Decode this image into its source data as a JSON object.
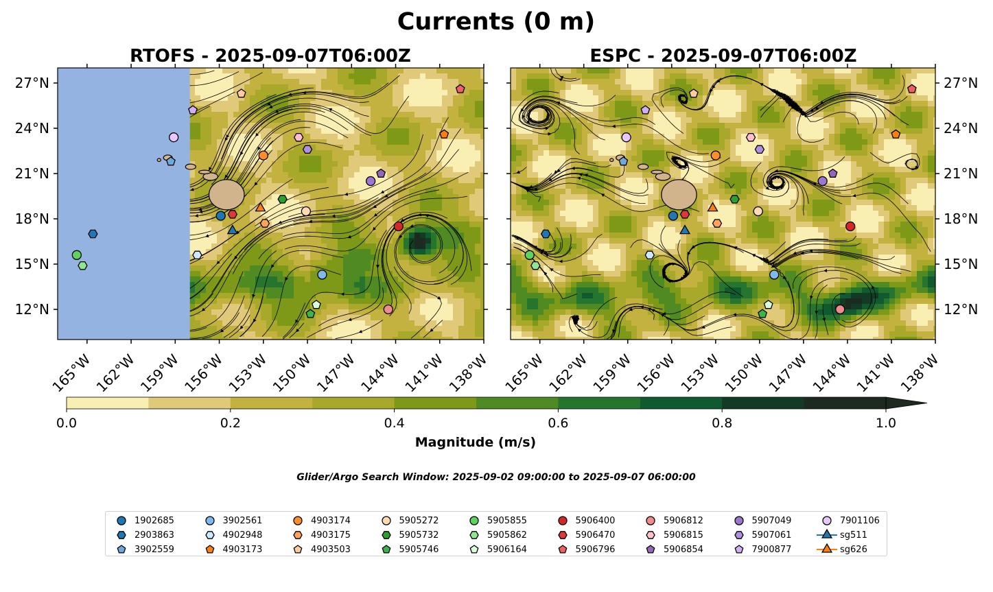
{
  "figure": {
    "title": "Currents (0 m)",
    "search_window": "Glider/Argo Search Window: 2025-09-02 09:00:00 to 2025-09-07 06:00:00"
  },
  "colors": {
    "land_mask": "#95b3e0",
    "land": "#d2b48c",
    "scale": [
      "#f9efb2",
      "#e0c979",
      "#c3b23f",
      "#a8a82a",
      "#7e9818",
      "#4f8a22",
      "#26752e",
      "#0f5a2e",
      "#133a24",
      "#1c2a1f"
    ]
  },
  "chart_data": [
    {
      "type": "map",
      "title": "RTOFS - 2025-09-07T06:00Z",
      "lon_range": [
        -167,
        -138
      ],
      "lat_range": [
        10,
        28
      ],
      "x_ticks": [
        "165°W",
        "162°W",
        "159°W",
        "156°W",
        "153°W",
        "150°W",
        "147°W",
        "144°W",
        "141°W",
        "138°W"
      ],
      "x_tick_values": [
        -165,
        -162,
        -159,
        -156,
        -153,
        -150,
        -147,
        -144,
        -141,
        -138
      ],
      "y_ticks": [
        "27°N",
        "24°N",
        "21°N",
        "18°N",
        "15°N",
        "12°N"
      ],
      "y_tick_values": [
        27,
        24,
        21,
        18,
        15,
        12
      ],
      "masked_west_of_lon": -158
    },
    {
      "type": "map",
      "title": "ESPC - 2025-09-07T06:00Z",
      "lon_range": [
        -167,
        -138
      ],
      "lat_range": [
        10,
        28
      ],
      "x_ticks": [
        "165°W",
        "162°W",
        "159°W",
        "156°W",
        "153°W",
        "150°W",
        "147°W",
        "144°W",
        "141°W",
        "138°W"
      ],
      "x_tick_values": [
        -165,
        -162,
        -159,
        -156,
        -153,
        -150,
        -147,
        -144,
        -141,
        -138
      ],
      "y_ticks": [
        "27°N",
        "24°N",
        "21°N",
        "18°N",
        "15°N",
        "12°N"
      ],
      "y_tick_values": [
        27,
        24,
        21,
        18,
        15,
        12
      ]
    },
    {
      "type": "colorbar",
      "label": "Magnitude (m/s)",
      "range": [
        0,
        1
      ],
      "levels": [
        0,
        0.1,
        0.2,
        0.3,
        0.4,
        0.5,
        0.6,
        0.7,
        0.8,
        0.9,
        1.0
      ],
      "tick_values": [
        0,
        0.2,
        0.4,
        0.6,
        0.8,
        1.0
      ],
      "ticks": [
        "0.0",
        "0.2",
        "0.4",
        "0.6",
        "0.8",
        "1.0"
      ],
      "extend": "max"
    }
  ],
  "floats": [
    {
      "id": "1902685",
      "marker": "circle",
      "color": "#1f77b4",
      "lon": -155.9,
      "lat": 18.2
    },
    {
      "id": "2903863",
      "marker": "hexagon",
      "color": "#1f77b4",
      "lon": -164.6,
      "lat": 17.0
    },
    {
      "id": "3902559",
      "marker": "pentagon",
      "color": "#6fa8dc",
      "lon": -159.3,
      "lat": 21.8
    },
    {
      "id": "3902561",
      "marker": "circle",
      "color": "#7fb9ee",
      "lon": -149.0,
      "lat": 14.3
    },
    {
      "id": "4902948",
      "marker": "hexagon",
      "color": "#cde8ff",
      "lon": -157.5,
      "lat": 15.6
    },
    {
      "id": "4903173",
      "marker": "pentagon",
      "color": "#ff7f0e",
      "lon": -140.7,
      "lat": 23.6
    },
    {
      "id": "4903174",
      "marker": "circle",
      "color": "#ff8c2a",
      "lon": -153.0,
      "lat": 22.2
    },
    {
      "id": "4903175",
      "marker": "hexagon",
      "color": "#ffa35a",
      "lon": -152.9,
      "lat": 17.7
    },
    {
      "id": "4903503",
      "marker": "pentagon",
      "color": "#ffcc99",
      "lon": -154.5,
      "lat": 26.3
    },
    {
      "id": "5905272",
      "marker": "circle",
      "color": "#ffdab3",
      "lon": -150.1,
      "lat": 18.5
    },
    {
      "id": "5905732",
      "marker": "hexagon",
      "color": "#2ca02c",
      "lon": -151.7,
      "lat": 19.3
    },
    {
      "id": "5905746",
      "marker": "pentagon",
      "color": "#3cb44b",
      "lon": -149.8,
      "lat": 11.7
    },
    {
      "id": "5905855",
      "marker": "circle",
      "color": "#5fd35f",
      "lon": -165.7,
      "lat": 15.6
    },
    {
      "id": "5905862",
      "marker": "hexagon",
      "color": "#8fe88f",
      "lon": -165.3,
      "lat": 14.9
    },
    {
      "id": "5906164",
      "marker": "pentagon",
      "color": "#d8ffd8",
      "lon": -149.4,
      "lat": 12.3
    },
    {
      "id": "5906400",
      "marker": "circle",
      "color": "#d62728",
      "lon": -143.8,
      "lat": 17.5
    },
    {
      "id": "5906470",
      "marker": "hexagon",
      "color": "#e0383a",
      "lon": -155.1,
      "lat": 18.3
    },
    {
      "id": "5906796",
      "marker": "pentagon",
      "color": "#f06060",
      "lon": -139.6,
      "lat": 26.6
    },
    {
      "id": "5906812",
      "marker": "circle",
      "color": "#f08c8c",
      "lon": -144.5,
      "lat": 12.0
    },
    {
      "id": "5906815",
      "marker": "hexagon",
      "color": "#ffc0cb",
      "lon": -150.6,
      "lat": 23.4
    },
    {
      "id": "5906854",
      "marker": "pentagon",
      "color": "#9467bd",
      "lon": -145.0,
      "lat": 21.0
    },
    {
      "id": "5907049",
      "marker": "circle",
      "color": "#9b77d0",
      "lon": -145.7,
      "lat": 20.5
    },
    {
      "id": "5907061",
      "marker": "hexagon",
      "color": "#b090e0",
      "lon": -150.0,
      "lat": 22.6
    },
    {
      "id": "7900877",
      "marker": "pentagon",
      "color": "#d0b0f0",
      "lon": -157.8,
      "lat": 25.2
    },
    {
      "id": "7901106",
      "marker": "circle",
      "color": "#eac6ff",
      "lon": -159.1,
      "lat": 23.4
    },
    {
      "id": "sg511",
      "marker": "triangle",
      "color": "#1f77b4",
      "line": true,
      "lon": -155.1,
      "lat": 17.2
    },
    {
      "id": "sg626",
      "marker": "triangle",
      "color": "#ff7f0e",
      "line": true,
      "lon": -153.2,
      "lat": 18.7
    }
  ]
}
